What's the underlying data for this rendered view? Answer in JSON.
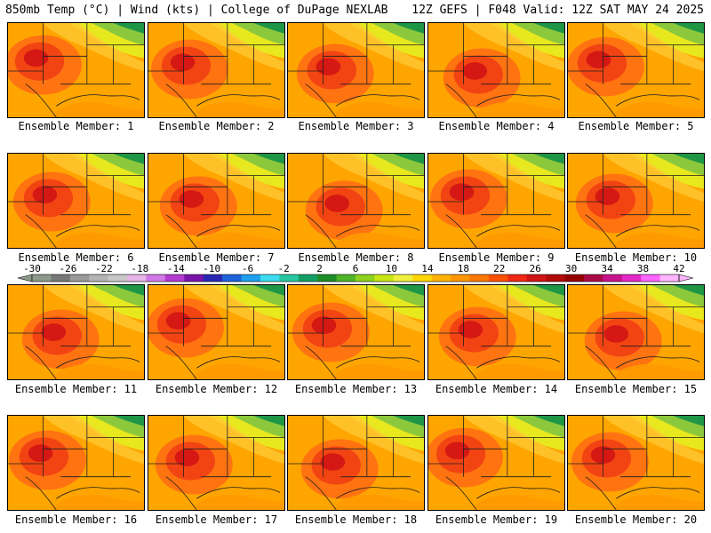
{
  "header": {
    "left_title": "850mb Temp (°C) | Wind (kts) | College of DuPage NEXLAB",
    "right_title": "12Z GEFS | F048 Valid: 12Z SAT MAY 24 2025"
  },
  "panels": [
    {
      "caption": "Ensemble Member: 1"
    },
    {
      "caption": "Ensemble Member: 2"
    },
    {
      "caption": "Ensemble Member: 3"
    },
    {
      "caption": "Ensemble Member: 4"
    },
    {
      "caption": "Ensemble Member: 5"
    },
    {
      "caption": "Ensemble Member: 6"
    },
    {
      "caption": "Ensemble Member: 7"
    },
    {
      "caption": "Ensemble Member: 8"
    },
    {
      "caption": "Ensemble Member: 9"
    },
    {
      "caption": "Ensemble Member: 10"
    },
    {
      "caption": "Ensemble Member: 11"
    },
    {
      "caption": "Ensemble Member: 12"
    },
    {
      "caption": "Ensemble Member: 13"
    },
    {
      "caption": "Ensemble Member: 14"
    },
    {
      "caption": "Ensemble Member: 15"
    },
    {
      "caption": "Ensemble Member: 16"
    },
    {
      "caption": "Ensemble Member: 17"
    },
    {
      "caption": "Ensemble Member: 18"
    },
    {
      "caption": "Ensemble Member: 19"
    },
    {
      "caption": "Ensemble Member: 20"
    }
  ],
  "colorbar": {
    "labels": [
      "-30",
      "-26",
      "-22",
      "-18",
      "-14",
      "-10",
      "-6",
      "-2",
      "2",
      "6",
      "10",
      "14",
      "18",
      "22",
      "26",
      "30",
      "34",
      "38",
      "42"
    ],
    "colors": [
      "#8c9a8c",
      "#787878",
      "#9a9a9a",
      "#b4b4b4",
      "#c8c8c8",
      "#e6b4e6",
      "#d278e6",
      "#b43cd2",
      "#7814aa",
      "#2828b4",
      "#1e64dc",
      "#1ea0f0",
      "#3cdcf0",
      "#28c8a0",
      "#14a064",
      "#1e8c28",
      "#50b428",
      "#8cd21e",
      "#c8e614",
      "#f0f03c",
      "#ffd700",
      "#ffb400",
      "#ff9600",
      "#ff7800",
      "#ff5000",
      "#f02814",
      "#d21414",
      "#b40a0a",
      "#960000",
      "#aa0a46",
      "#c8148c",
      "#e628c8",
      "#ff64ff",
      "#ffb4ff"
    ],
    "accent_colors": {
      "land_outline": "#1e1e1e"
    }
  }
}
